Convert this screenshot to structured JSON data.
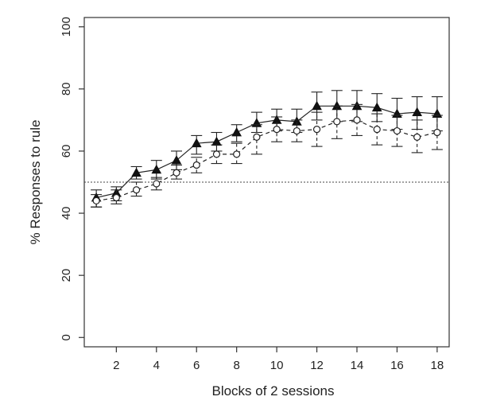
{
  "chart_data": {
    "type": "line",
    "title": "",
    "xlabel": "Blocks of 2 sessions",
    "ylabel": "% Responses to rule",
    "xlim": [
      0.4,
      18.6
    ],
    "ylim": [
      -3,
      103
    ],
    "xticks": [
      2,
      4,
      6,
      8,
      10,
      12,
      14,
      16,
      18
    ],
    "yticks": [
      0,
      20,
      40,
      60,
      80,
      100
    ],
    "reference_line": {
      "y": 50,
      "style": "dotted"
    },
    "grid": false,
    "legend": "none",
    "x": [
      1,
      2,
      3,
      4,
      5,
      6,
      7,
      8,
      9,
      10,
      11,
      12,
      13,
      14,
      15,
      16,
      17,
      18
    ],
    "series": [
      {
        "marker": "filled-triangle",
        "line": "solid",
        "values": [
          45,
          46.5,
          53,
          54,
          57,
          62.5,
          63,
          66,
          69,
          70,
          69.5,
          74.5,
          74.5,
          74.5,
          74,
          72,
          72.5,
          72
        ],
        "err_low": [
          42,
          44,
          51,
          51,
          54,
          59,
          60,
          63,
          66,
          66.5,
          66,
          70,
          69.5,
          69.5,
          69.5,
          67,
          67,
          66.5
        ],
        "err_high": [
          47.5,
          48.5,
          55,
          57,
          60,
          65,
          66,
          68.5,
          72.5,
          73.5,
          73.5,
          79,
          79.5,
          79.5,
          78.5,
          77,
          77.5,
          77.5
        ]
      },
      {
        "marker": "open-circle",
        "line": "dashed",
        "values": [
          44,
          45,
          47.5,
          49.5,
          53,
          55.5,
          59,
          59,
          64.5,
          67,
          66.5,
          67,
          69.5,
          70,
          67,
          66.5,
          64.5,
          66
        ],
        "err_low": [
          42,
          43,
          45.5,
          47.5,
          51,
          53,
          56,
          56,
          59,
          63,
          63,
          61.5,
          64,
          65,
          62,
          61.5,
          59.5,
          60.5
        ],
        "err_high": [
          46,
          47.5,
          50,
          51.5,
          55.5,
          58,
          62,
          62.5,
          68.5,
          71,
          70,
          72.5,
          74.5,
          75,
          72,
          71.5,
          70,
          71.5
        ]
      }
    ]
  }
}
